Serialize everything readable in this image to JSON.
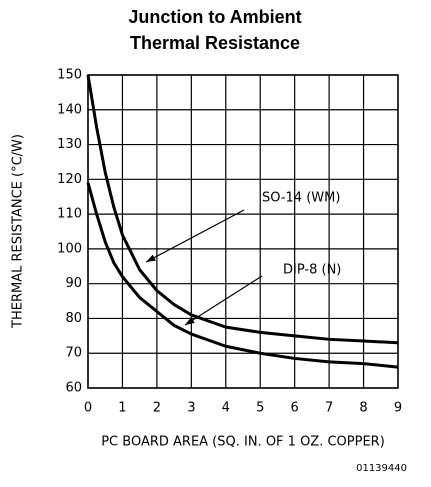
{
  "chart_data": {
    "type": "line",
    "title_lines": [
      "Junction to Ambient",
      "Thermal Resistance"
    ],
    "x_label": "PC BOARD AREA (SQ. IN. OF 1 OZ. COPPER)",
    "y_label": "THERMAL RESISTANCE (°C/W)",
    "footnote": "01139440",
    "x": [
      0,
      0.25,
      0.5,
      0.75,
      1,
      1.5,
      2,
      2.5,
      3,
      4,
      5,
      6,
      7,
      8,
      9
    ],
    "series": [
      {
        "name": "SO-14 (WM)",
        "color": "#000000",
        "values": [
          150,
          135,
          122,
          112,
          104,
          94,
          88,
          84,
          81,
          77.5,
          76,
          75,
          74,
          73.5,
          73
        ]
      },
      {
        "name": "DIP-8 (N)",
        "color": "#000000",
        "values": [
          119,
          110,
          102,
          96,
          92,
          86,
          82,
          78,
          75.5,
          72,
          70,
          68.5,
          67.5,
          67,
          66
        ]
      }
    ],
    "xlim": [
      0,
      9
    ],
    "xticks": [
      0,
      1,
      2,
      3,
      4,
      5,
      6,
      7,
      8,
      9
    ],
    "ylim": [
      60,
      150
    ],
    "yticks": [
      60,
      70,
      80,
      90,
      100,
      110,
      120,
      130,
      140,
      150
    ],
    "grid": true
  }
}
